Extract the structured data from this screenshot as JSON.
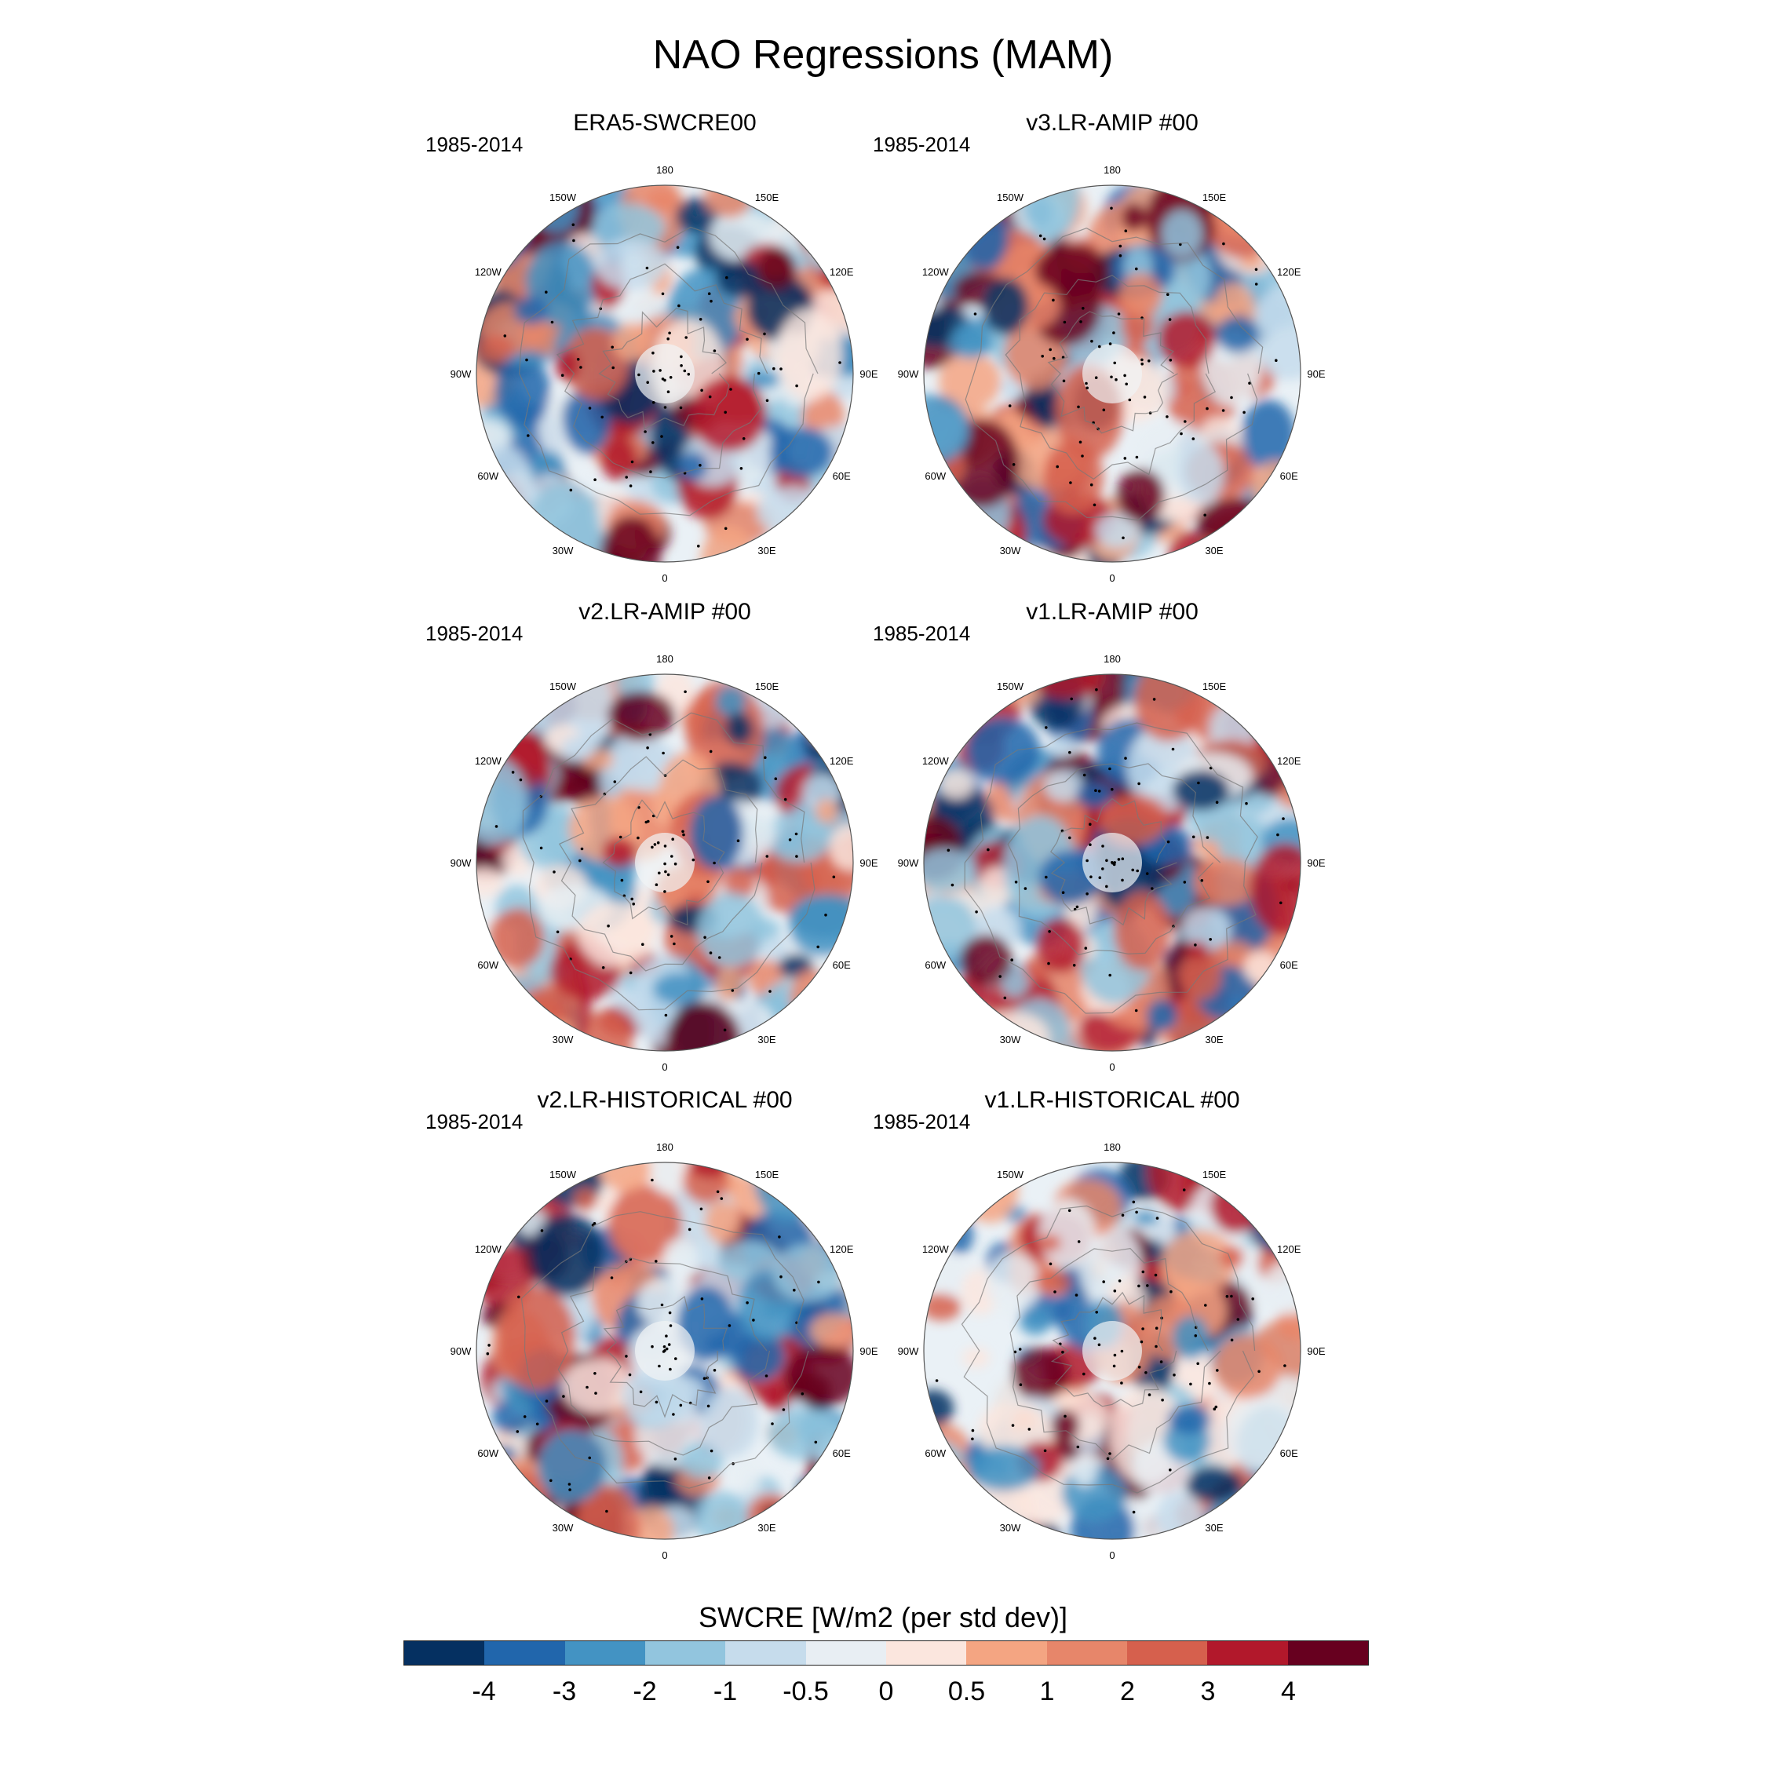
{
  "figure": {
    "title": "NAO Regressions (MAM)"
  },
  "panels": [
    {
      "id": "era5",
      "title": "ERA5-SWCRE00",
      "period": "1985-2014"
    },
    {
      "id": "v3amip",
      "title": "v3.LR-AMIP  #00",
      "period": "1985-2014"
    },
    {
      "id": "v2amip",
      "title": "v2.LR-AMIP  #00",
      "period": "1985-2014"
    },
    {
      "id": "v1amip",
      "title": "v1.LR-AMIP  #00",
      "period": "1985-2014"
    },
    {
      "id": "v2hist",
      "title": "v2.LR-HISTORICAL  #00",
      "period": "1985-2014"
    },
    {
      "id": "v1hist",
      "title": "v1.LR-HISTORICAL  #00",
      "period": "1985-2014"
    }
  ],
  "map": {
    "projection": "north polar stereographic",
    "longitude_labels": [
      {
        "lon": 0,
        "label": "0"
      },
      {
        "lon": 30,
        "label": "30E"
      },
      {
        "lon": 60,
        "label": "60E"
      },
      {
        "lon": 90,
        "label": "90E"
      },
      {
        "lon": 120,
        "label": "120E"
      },
      {
        "lon": 150,
        "label": "150E"
      },
      {
        "lon": 180,
        "label": "180"
      },
      {
        "lon": -150,
        "label": "150W"
      },
      {
        "lon": -120,
        "label": "120W"
      },
      {
        "lon": -90,
        "label": "90W"
      },
      {
        "lon": -60,
        "label": "60W"
      },
      {
        "lon": -30,
        "label": "30W"
      }
    ]
  },
  "colorbar": {
    "title": "SWCRE [W/m2 (per std dev)]",
    "tick_labels": [
      "-4",
      "-3",
      "-2",
      "-1",
      "-0.5",
      "0",
      "0.5",
      "1",
      "2",
      "3",
      "4"
    ],
    "colors": [
      "#053061",
      "#2166ac",
      "#4393c3",
      "#92c5de",
      "#c6dcec",
      "#e8eef3",
      "#fbe6de",
      "#f4a582",
      "#e7866a",
      "#d6604d",
      "#b2182b",
      "#67001f"
    ]
  }
}
